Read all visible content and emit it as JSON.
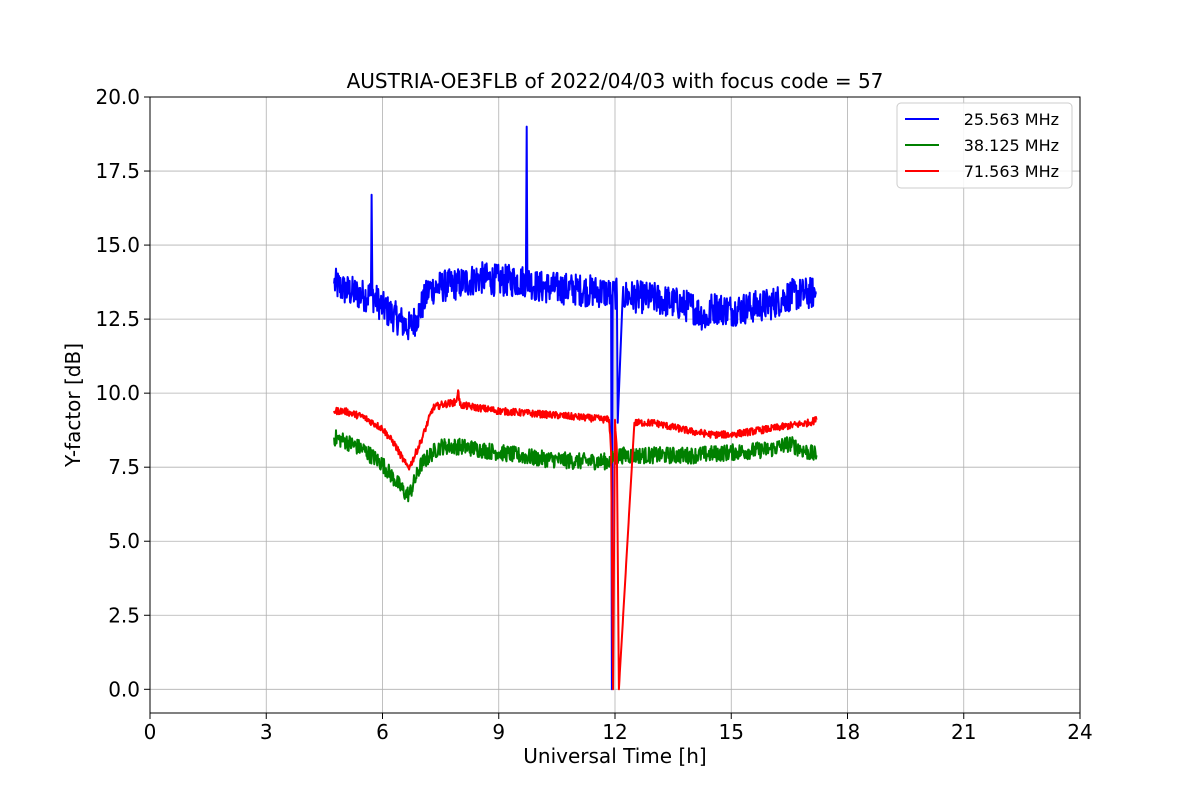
{
  "chart_data": {
    "type": "line",
    "title": "AUSTRIA-OE3FLB of 2022/04/03 with focus code = 57",
    "xlabel": "Universal Time [h]",
    "ylabel": "Y-factor [dB]",
    "xlim": [
      0,
      24
    ],
    "ylim": [
      -0.8,
      20
    ],
    "xticks": [
      0,
      3,
      6,
      9,
      12,
      15,
      18,
      21,
      24
    ],
    "xtick_labels": [
      "0",
      "3",
      "6",
      "9",
      "12",
      "15",
      "18",
      "21",
      "24"
    ],
    "yticks": [
      0,
      2.5,
      5,
      7.5,
      10,
      12.5,
      15,
      17.5,
      20
    ],
    "ytick_labels": [
      "0.0",
      "2.5",
      "5.0",
      "7.5",
      "10.0",
      "12.5",
      "15.0",
      "17.5",
      "20.0"
    ],
    "grid": true,
    "legend_position": "top-right",
    "series": [
      {
        "name": "25.563 MHz",
        "color": "#0000ff",
        "noise": 0.55,
        "x": [
          4.75,
          5.0,
          5.5,
          5.7,
          5.72,
          5.74,
          6.0,
          6.5,
          6.7,
          6.9,
          7.2,
          7.5,
          8.0,
          8.5,
          9.0,
          9.7,
          9.72,
          9.74,
          10.0,
          11.0,
          11.8,
          11.9,
          11.92,
          11.94,
          12.0,
          12.05,
          12.07,
          12.2,
          13.0,
          14.0,
          14.4,
          14.5,
          15.0,
          16.0,
          16.5,
          17.2
        ],
        "y": [
          13.7,
          13.5,
          13.3,
          13.3,
          16.7,
          13.3,
          12.9,
          12.4,
          12.2,
          12.6,
          13.5,
          13.6,
          13.7,
          13.9,
          13.8,
          13.8,
          19.0,
          13.8,
          13.6,
          13.5,
          13.4,
          13.3,
          0.0,
          13.3,
          13.4,
          13.3,
          9.0,
          13.3,
          13.2,
          12.9,
          12.5,
          12.9,
          12.8,
          13.0,
          13.3,
          13.4
        ]
      },
      {
        "name": "38.125 MHz",
        "color": "#008000",
        "noise": 0.28,
        "x": [
          4.75,
          5.0,
          5.5,
          6.0,
          6.3,
          6.6,
          6.7,
          7.0,
          7.3,
          7.5,
          8.0,
          8.5,
          9.0,
          9.5,
          10.0,
          11.0,
          11.9,
          12.0,
          12.05,
          12.1,
          12.5,
          13.0,
          14.0,
          15.0,
          16.0,
          16.5,
          16.8,
          17.2
        ],
        "y": [
          8.5,
          8.4,
          8.1,
          7.6,
          7.1,
          6.6,
          6.6,
          7.6,
          8.0,
          8.2,
          8.2,
          8.1,
          8.0,
          7.9,
          7.8,
          7.7,
          7.7,
          7.9,
          7.8,
          7.9,
          7.9,
          7.9,
          7.9,
          8.0,
          8.1,
          8.3,
          8.1,
          7.9
        ]
      },
      {
        "name": "71.563 MHz",
        "color": "#ff0000",
        "noise": 0.12,
        "x": [
          4.75,
          5.0,
          5.5,
          6.0,
          6.3,
          6.6,
          6.7,
          7.0,
          7.3,
          7.5,
          7.9,
          7.95,
          8.0,
          8.5,
          9.0,
          10.0,
          11.0,
          11.85,
          11.9,
          11.95,
          12.0,
          12.05,
          12.1,
          12.5,
          13.0,
          14.0,
          14.5,
          15.0,
          16.0,
          17.0,
          17.2
        ],
        "y": [
          9.4,
          9.4,
          9.2,
          8.8,
          8.3,
          7.6,
          7.5,
          8.4,
          9.5,
          9.6,
          9.7,
          10.1,
          9.6,
          9.5,
          9.4,
          9.3,
          9.2,
          9.1,
          8.0,
          0.0,
          9.1,
          8.0,
          0.0,
          9.0,
          9.0,
          8.7,
          8.6,
          8.6,
          8.8,
          9.0,
          9.1
        ]
      }
    ]
  }
}
